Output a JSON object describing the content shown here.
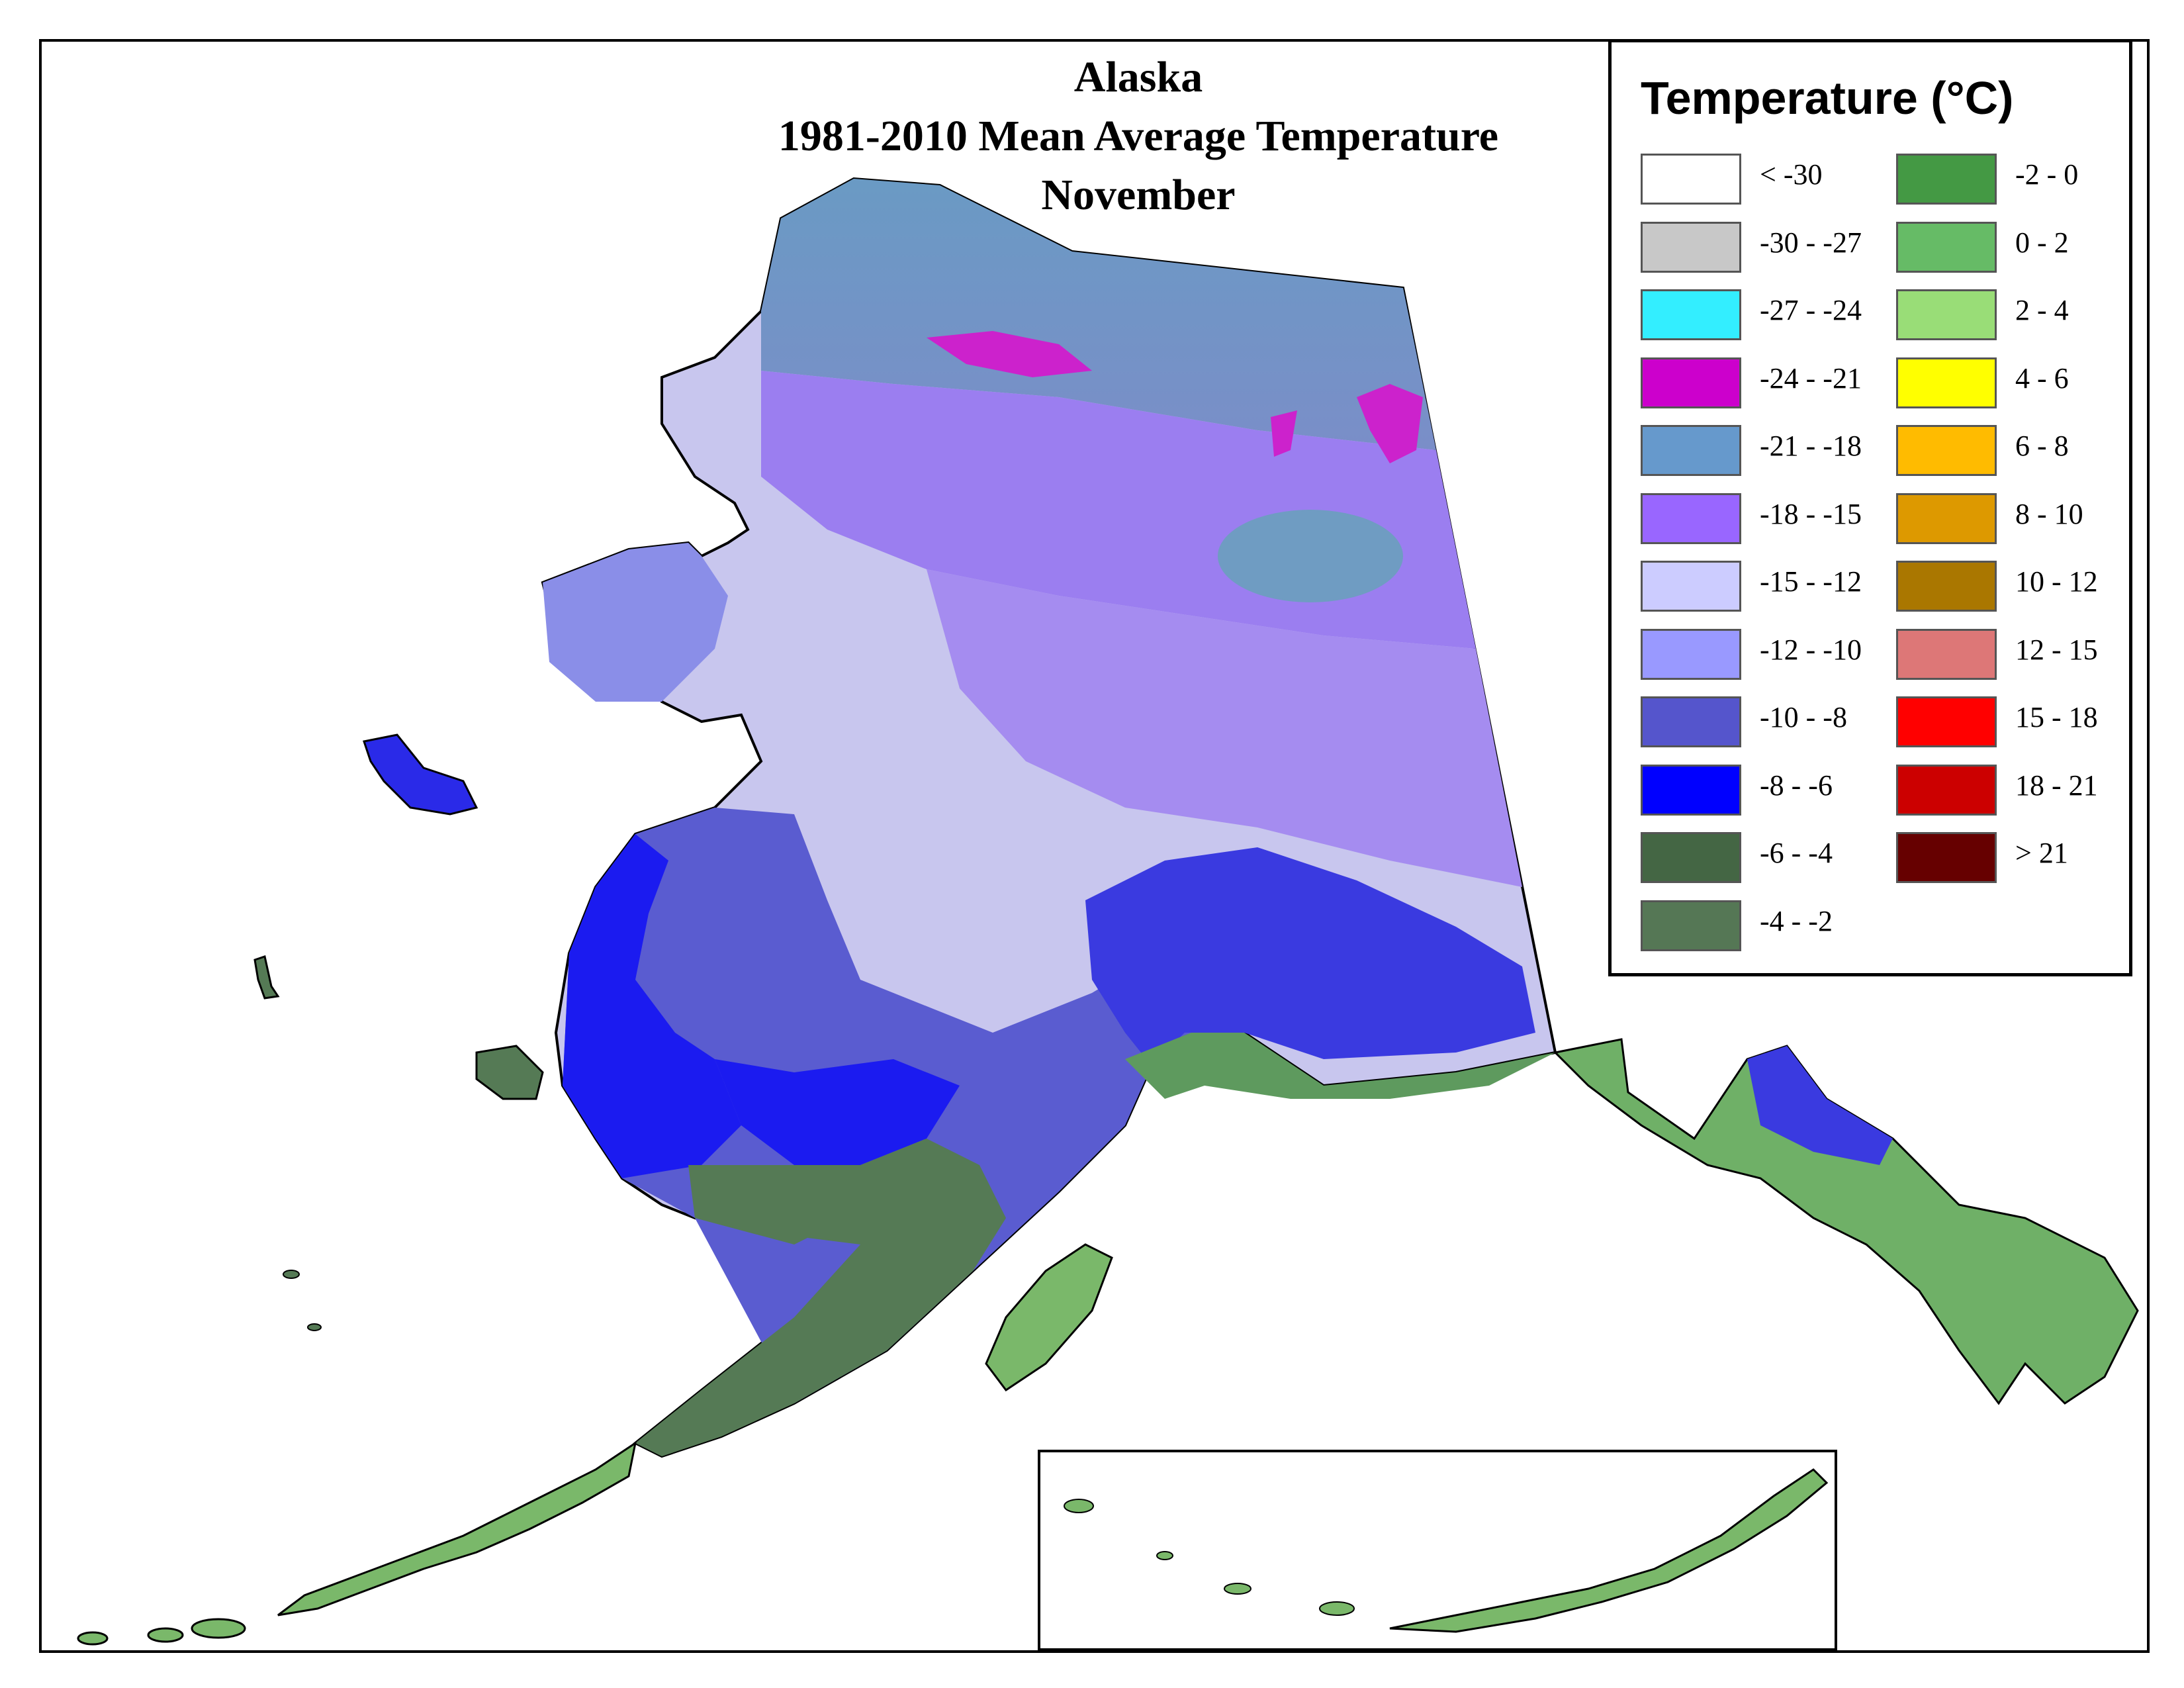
{
  "title": {
    "line1": "Alaska",
    "line2": "1981-2010 Mean Average Temperature",
    "line3": "November"
  },
  "legend": {
    "title": "Temperature (°C)",
    "left_column": [
      {
        "label": "< -30",
        "color": "#ffffff"
      },
      {
        "label": "-30 - -27",
        "color": "#c8c8c8"
      },
      {
        "label": "-27 - -24",
        "color": "#33eeff"
      },
      {
        "label": "-24 - -21",
        "color": "#cc00cc"
      },
      {
        "label": "-21 - -18",
        "color": "#6699cc"
      },
      {
        "label": "-18 - -15",
        "color": "#9966ff"
      },
      {
        "label": "-15 - -12",
        "color": "#ccccff"
      },
      {
        "label": "-12 - -10",
        "color": "#9999ff"
      },
      {
        "label": "-10 - -8",
        "color": "#5555cc"
      },
      {
        "label": "-8 - -6",
        "color": "#0000ff"
      },
      {
        "label": "-6 - -4",
        "color": "#446644"
      },
      {
        "label": "-4 - -2",
        "color": "#557755"
      }
    ],
    "right_column": [
      {
        "label": "-2 - 0",
        "color": "#449944"
      },
      {
        "label": "0 - 2",
        "color": "#66bb66"
      },
      {
        "label": "2 - 4",
        "color": "#99dd77"
      },
      {
        "label": "4 - 6",
        "color": "#ffff00"
      },
      {
        "label": "6 - 8",
        "color": "#ffbb00"
      },
      {
        "label": "8 - 10",
        "color": "#dd9900"
      },
      {
        "label": "10 - 12",
        "color": "#aa7700"
      },
      {
        "label": "12 - 15",
        "color": "#dd7777"
      },
      {
        "label": "15 - 18",
        "color": "#ff0000"
      },
      {
        "label": "18 - 21",
        "color": "#cc0000"
      },
      {
        "label": "> 21",
        "color": "#660000"
      }
    ]
  }
}
